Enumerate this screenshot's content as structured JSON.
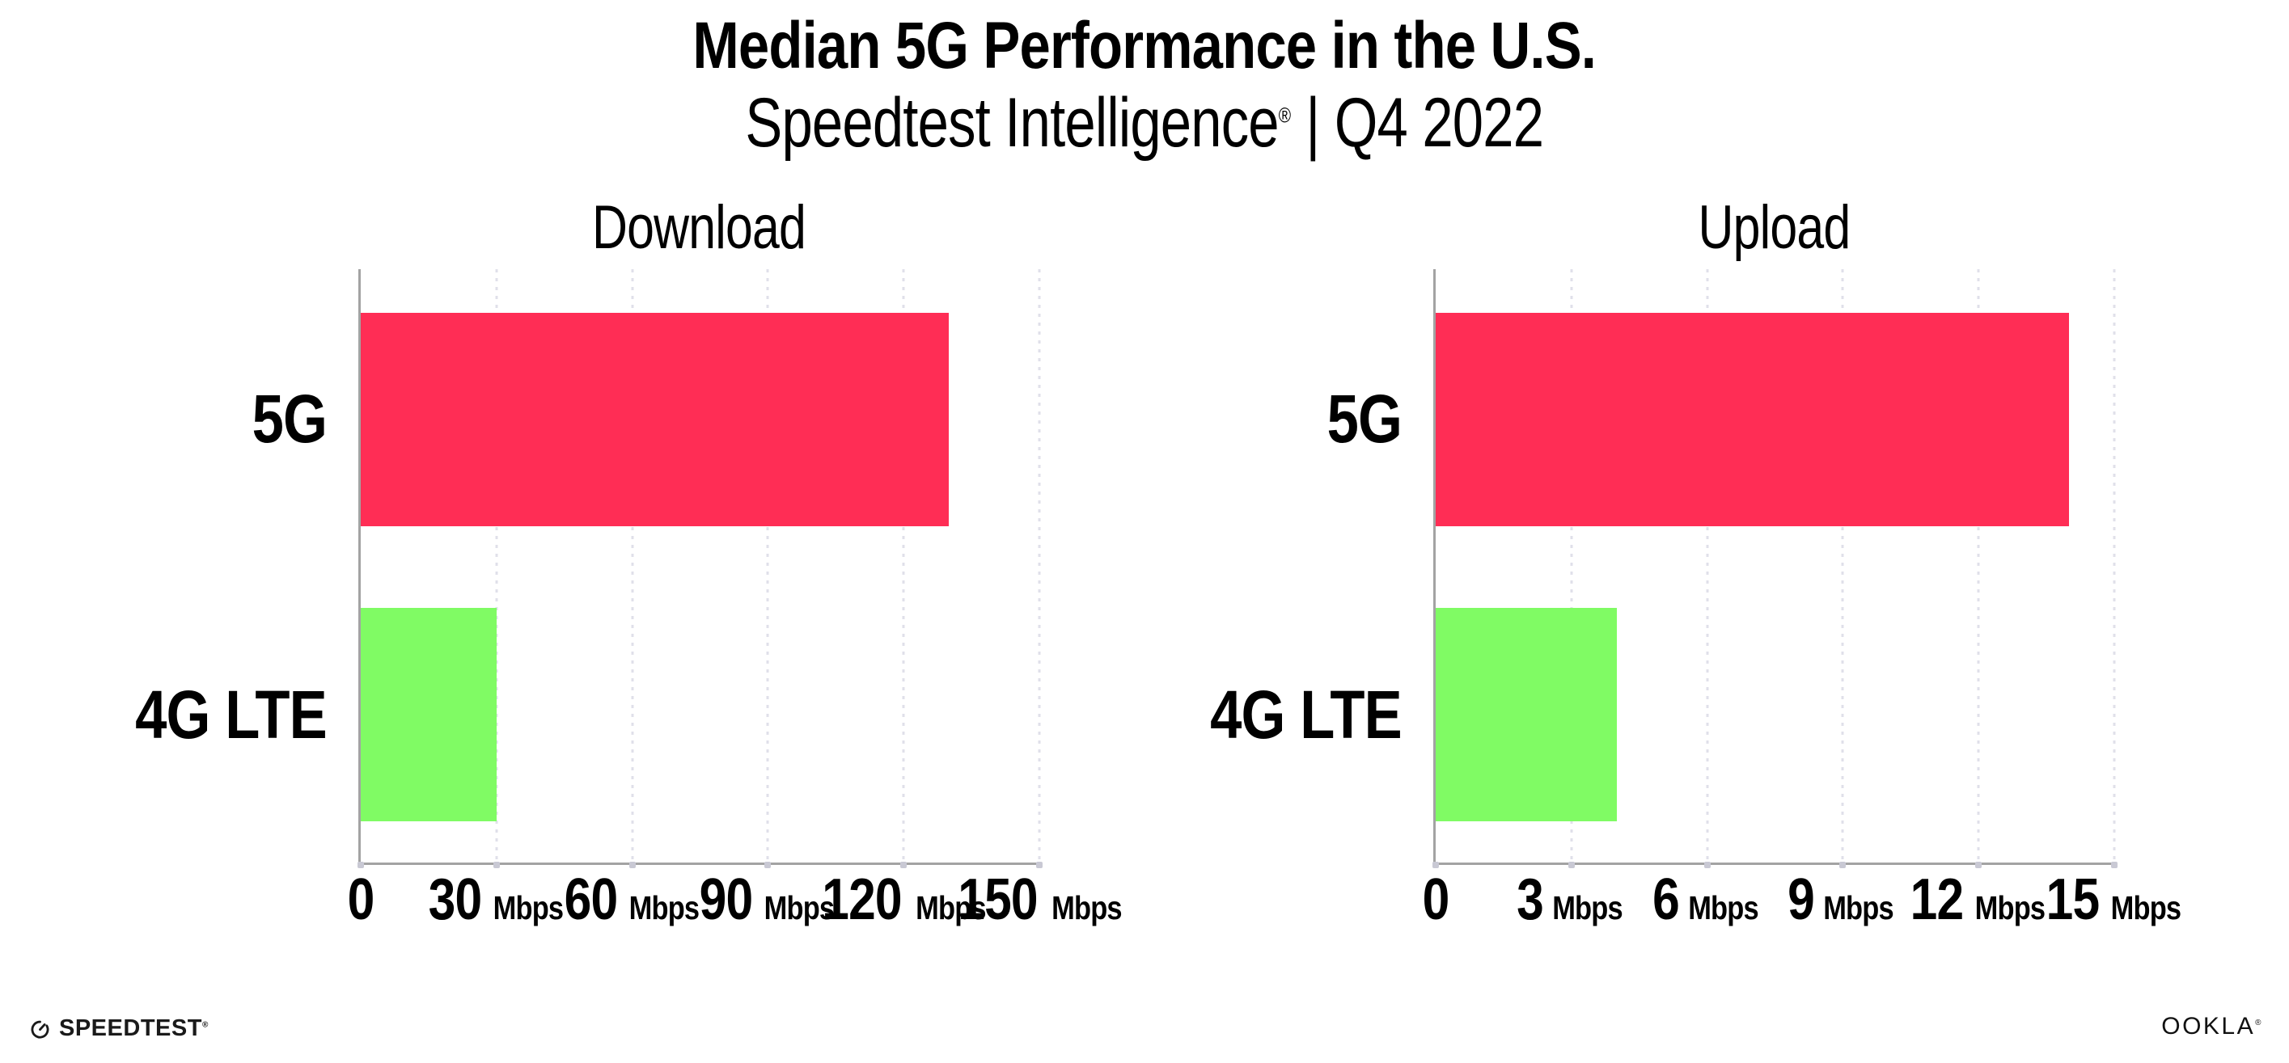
{
  "header": {
    "title": "Median 5G Performance in the U.S.",
    "subtitle_brand": "Speedtest Intelligence",
    "subtitle_reg": "®",
    "subtitle_sep": " | ",
    "subtitle_period": "Q4 2022"
  },
  "chart_data": [
    {
      "type": "bar",
      "orientation": "horizontal",
      "title": "Download",
      "unit": "Mbps",
      "categories": [
        "5G",
        "4G LTE"
      ],
      "values": [
        130,
        30
      ],
      "xlim": [
        0,
        150
      ],
      "xticks": [
        0,
        30,
        60,
        90,
        120,
        150
      ],
      "bar_colors": [
        "#FF2D55",
        "#80FB64"
      ],
      "grid": "dotted-vertical-at-ticks",
      "legend": "none"
    },
    {
      "type": "bar",
      "orientation": "horizontal",
      "title": "Upload",
      "unit": "Mbps",
      "categories": [
        "5G",
        "4G LTE"
      ],
      "values": [
        14,
        4
      ],
      "xlim": [
        0,
        15
      ],
      "xticks": [
        0,
        3,
        6,
        9,
        12,
        15
      ],
      "bar_colors": [
        "#FF2D55",
        "#80FB64"
      ],
      "grid": "dotted-vertical-at-ticks",
      "legend": "none"
    }
  ],
  "footer": {
    "speedtest_label": "SPEEDTEST",
    "speedtest_reg": "®",
    "ookla_label": "OOKLA",
    "ookla_reg": "®"
  },
  "colors": {
    "bar_5g": "#FF2D55",
    "bar_4g": "#80FB64",
    "axis": "#A3A3A3",
    "grid": "#E0E0EA",
    "tick_dot": "#C9C9D4",
    "text": "#000000",
    "background": "#FFFFFF"
  }
}
